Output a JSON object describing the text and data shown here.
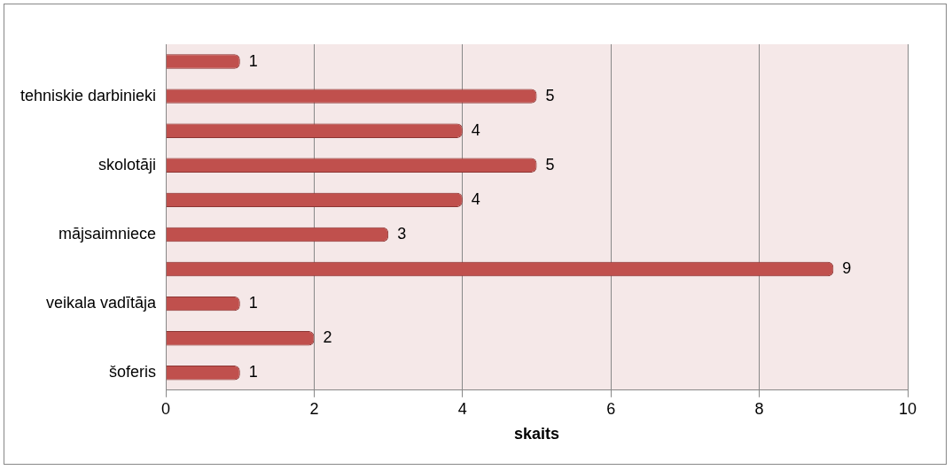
{
  "chart_data": {
    "type": "bar",
    "orientation": "horizontal",
    "xlabel": "skaits",
    "categories": [
      null,
      "tehniskie darbinieki",
      null,
      "skolotāji",
      null,
      "mājsaimniece",
      null,
      "veikala vadītāja",
      null,
      "šoferis"
    ],
    "values": [
      1,
      5,
      4,
      5,
      4,
      3,
      9,
      1,
      2,
      1
    ],
    "color": "#c0504d",
    "xlim": [
      0,
      10
    ],
    "xticks": [
      0,
      2,
      4,
      6,
      8,
      10
    ],
    "grid": "x",
    "data_labels": true,
    "legend": false
  }
}
